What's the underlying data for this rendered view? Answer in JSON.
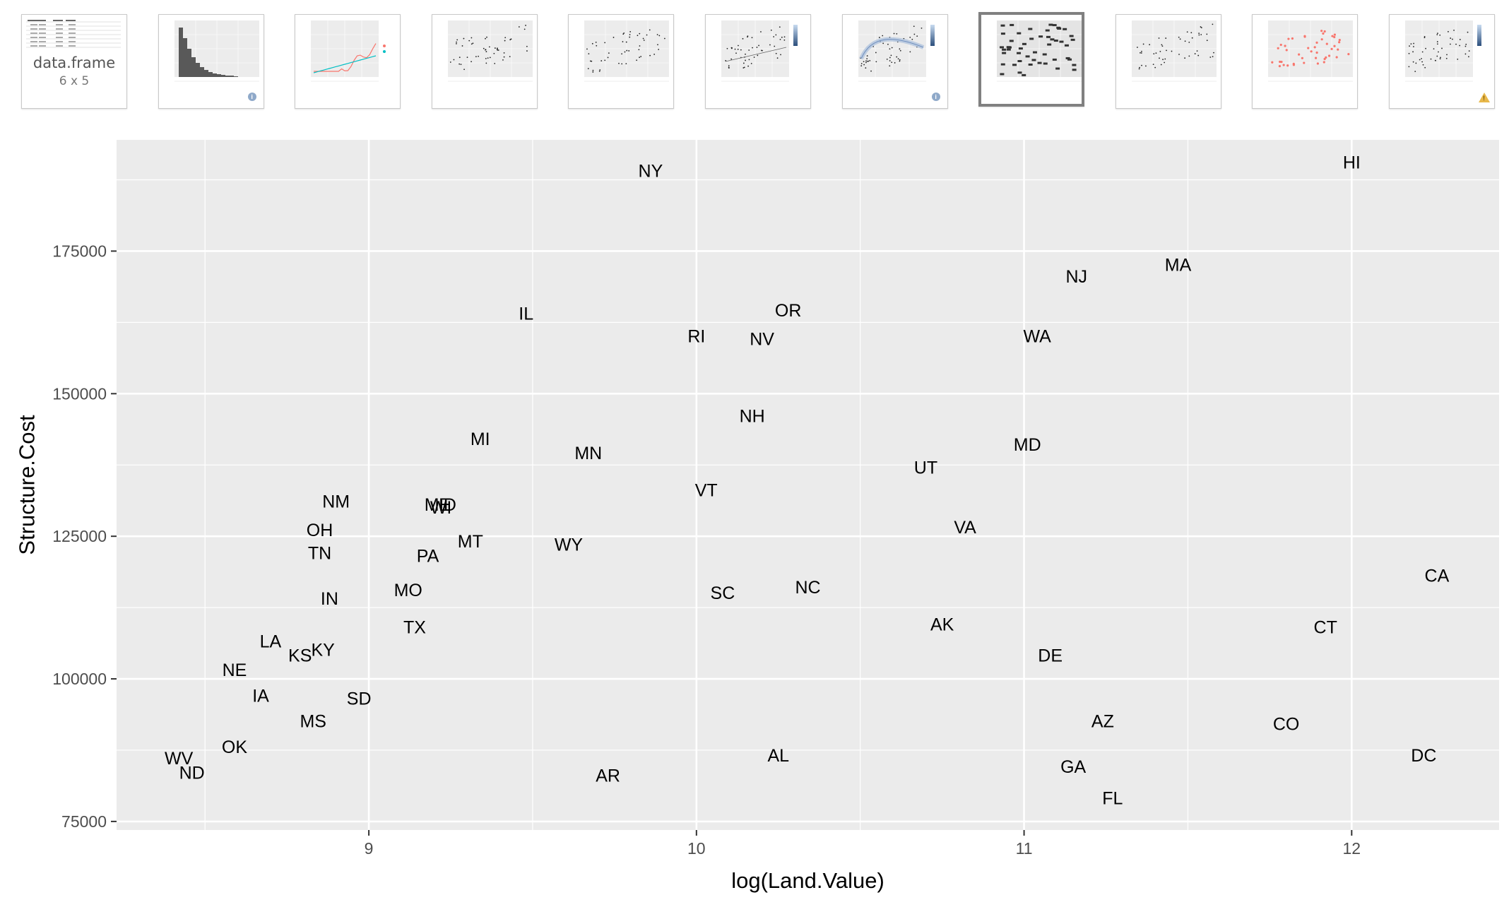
{
  "thumbnails": [
    {
      "kind": "dataframe",
      "title": "data.frame",
      "dims": "6 x 5",
      "badge": null
    },
    {
      "kind": "histogram",
      "badge": "info"
    },
    {
      "kind": "line",
      "badge": null
    },
    {
      "kind": "scatter",
      "badge": null
    },
    {
      "kind": "scatter",
      "badge": null
    },
    {
      "kind": "scatter-legend",
      "badge": null
    },
    {
      "kind": "smooth",
      "badge": "info"
    },
    {
      "kind": "text-labels",
      "badge": null,
      "selected": true
    },
    {
      "kind": "scatter",
      "badge": null
    },
    {
      "kind": "scatter-red",
      "badge": null
    },
    {
      "kind": "scatter-legend",
      "badge": "warning"
    }
  ],
  "colors": {
    "panel_bg": "#EBEBEB",
    "grid": "#FFFFFF",
    "text": "#000000",
    "axis_text": "#4D4D4D",
    "selected_border": "#808080",
    "thumb_red": "#F8766D",
    "thumb_teal": "#00BFC4"
  },
  "chart_data": {
    "type": "scatter",
    "mark": "text-label",
    "title": "",
    "xlabel": "log(Land.Value)",
    "ylabel": "Structure.Cost",
    "xlim": [
      8.23,
      12.45
    ],
    "ylim": [
      73500,
      194500
    ],
    "x_ticks": [
      9,
      10,
      11,
      12
    ],
    "y_ticks": [
      75000,
      100000,
      125000,
      150000,
      175000
    ],
    "grid": true,
    "legend": "none",
    "points": [
      {
        "label": "HI",
        "x": 12.0,
        "y": 190500
      },
      {
        "label": "NY",
        "x": 9.86,
        "y": 189000
      },
      {
        "label": "MA",
        "x": 11.47,
        "y": 172500
      },
      {
        "label": "NJ",
        "x": 11.16,
        "y": 170500
      },
      {
        "label": "IL",
        "x": 9.48,
        "y": 164000
      },
      {
        "label": "OR",
        "x": 10.28,
        "y": 164500
      },
      {
        "label": "RI",
        "x": 10.0,
        "y": 160000
      },
      {
        "label": "NV",
        "x": 10.2,
        "y": 159500
      },
      {
        "label": "WA",
        "x": 11.04,
        "y": 160000
      },
      {
        "label": "NH",
        "x": 10.17,
        "y": 146000
      },
      {
        "label": "MI",
        "x": 9.34,
        "y": 142000
      },
      {
        "label": "MN",
        "x": 9.67,
        "y": 139500
      },
      {
        "label": "MD",
        "x": 11.01,
        "y": 141000
      },
      {
        "label": "UT",
        "x": 10.7,
        "y": 137000
      },
      {
        "label": "VT",
        "x": 10.03,
        "y": 133000
      },
      {
        "label": "NM",
        "x": 8.9,
        "y": 131000
      },
      {
        "label": "ME",
        "x": 9.21,
        "y": 130500
      },
      {
        "label": "WI",
        "x": 9.22,
        "y": 130000
      },
      {
        "label": "ID",
        "x": 9.24,
        "y": 130500
      },
      {
        "label": "OH",
        "x": 8.85,
        "y": 126000
      },
      {
        "label": "VA",
        "x": 10.82,
        "y": 126500
      },
      {
        "label": "MT",
        "x": 9.31,
        "y": 124000
      },
      {
        "label": "WY",
        "x": 9.61,
        "y": 123500
      },
      {
        "label": "TN",
        "x": 8.85,
        "y": 122000
      },
      {
        "label": "PA",
        "x": 9.18,
        "y": 121500
      },
      {
        "label": "CA",
        "x": 12.26,
        "y": 118000
      },
      {
        "label": "MO",
        "x": 9.12,
        "y": 115500
      },
      {
        "label": "SC",
        "x": 10.08,
        "y": 115000
      },
      {
        "label": "NC",
        "x": 10.34,
        "y": 116000
      },
      {
        "label": "IN",
        "x": 8.88,
        "y": 114000
      },
      {
        "label": "AK",
        "x": 10.75,
        "y": 109500
      },
      {
        "label": "CT",
        "x": 11.92,
        "y": 109000
      },
      {
        "label": "TX",
        "x": 9.14,
        "y": 109000
      },
      {
        "label": "LA",
        "x": 8.7,
        "y": 106500
      },
      {
        "label": "KY",
        "x": 8.86,
        "y": 105000
      },
      {
        "label": "KS",
        "x": 8.79,
        "y": 104000
      },
      {
        "label": "DE",
        "x": 11.08,
        "y": 104000
      },
      {
        "label": "NE",
        "x": 8.59,
        "y": 101500
      },
      {
        "label": "IA",
        "x": 8.67,
        "y": 97000
      },
      {
        "label": "SD",
        "x": 8.97,
        "y": 96500
      },
      {
        "label": "MS",
        "x": 8.83,
        "y": 92500
      },
      {
        "label": "AZ",
        "x": 11.24,
        "y": 92500
      },
      {
        "label": "CO",
        "x": 11.8,
        "y": 92000
      },
      {
        "label": "OK",
        "x": 8.59,
        "y": 88000
      },
      {
        "label": "WV",
        "x": 8.42,
        "y": 86000
      },
      {
        "label": "AL",
        "x": 10.25,
        "y": 86500
      },
      {
        "label": "DC",
        "x": 12.22,
        "y": 86500
      },
      {
        "label": "GA",
        "x": 11.15,
        "y": 84500
      },
      {
        "label": "ND",
        "x": 8.46,
        "y": 83500
      },
      {
        "label": "AR",
        "x": 9.73,
        "y": 83000
      },
      {
        "label": "FL",
        "x": 11.27,
        "y": 79000
      }
    ]
  }
}
